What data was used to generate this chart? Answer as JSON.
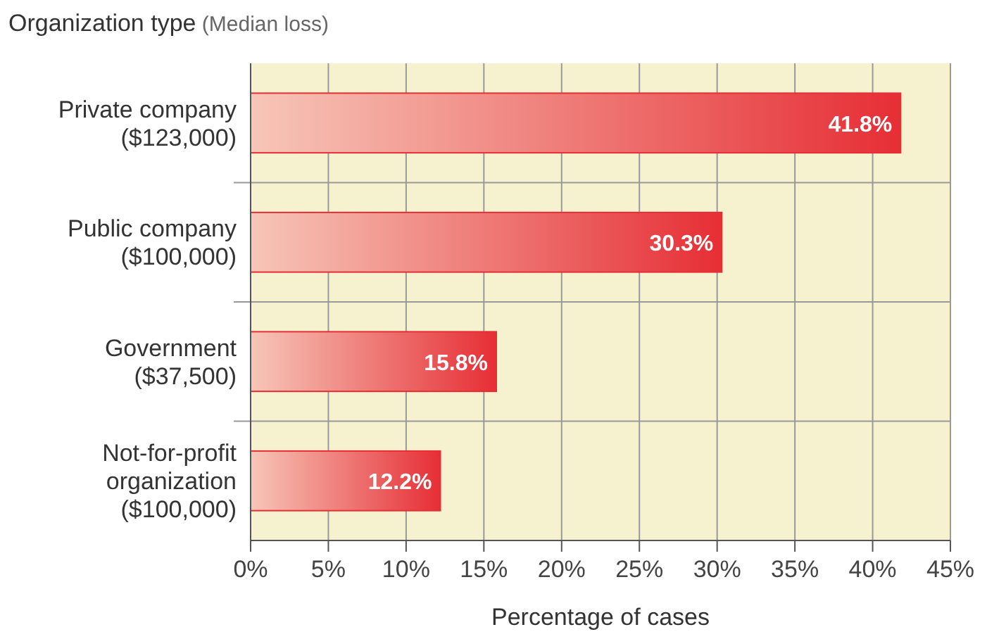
{
  "chart_data": {
    "type": "bar",
    "orientation": "horizontal",
    "title": "Organization type",
    "subtitle": "(Median loss)",
    "xlabel": "Percentage of cases",
    "categories": [
      "Private company\n($123,000)",
      "Public company\n($100,000)",
      "Government\n($37,500)",
      "Not-for-profit\norganization\n($100,000)"
    ],
    "values": [
      41.8,
      30.3,
      15.8,
      12.2
    ],
    "color": "#e62e35",
    "value_labels": [
      "41.8%",
      "30.3%",
      "15.8%",
      "12.2%"
    ],
    "xlim": [
      0,
      45
    ],
    "xticks": [
      {
        "value": 0,
        "label": "0%"
      },
      {
        "value": 5,
        "label": "5%"
      },
      {
        "value": 10,
        "label": "10%"
      },
      {
        "value": 15,
        "label": "15%"
      },
      {
        "value": 20,
        "label": "20%"
      },
      {
        "value": 25,
        "label": "25%"
      },
      {
        "value": 30,
        "label": "30%"
      },
      {
        "value": 35,
        "label": "35%"
      },
      {
        "value": 40,
        "label": "40%"
      },
      {
        "value": 45,
        "label": "45%"
      }
    ],
    "grid": true
  }
}
